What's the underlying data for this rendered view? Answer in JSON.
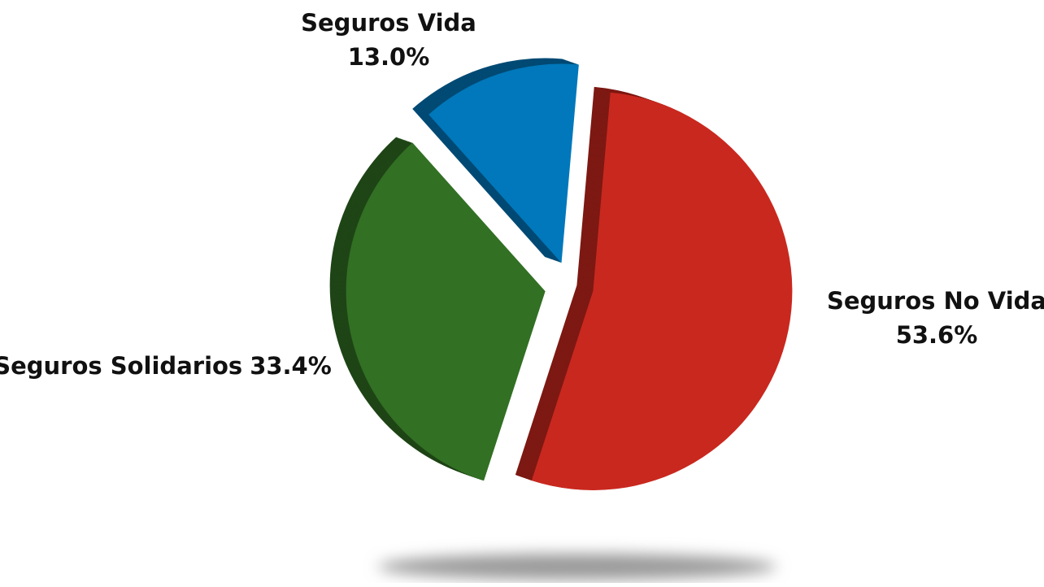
{
  "chart_data": {
    "type": "pie",
    "categories": [
      "Seguros No Vida",
      "Seguros Solidarios",
      "Seguros Vida"
    ],
    "values": [
      53.6,
      33.4,
      13.0
    ],
    "value_labels": [
      "53.6%",
      "33.4%",
      "13.0%"
    ],
    "colors": [
      "#c9281f",
      "#327024",
      "#0078bb"
    ]
  }
}
